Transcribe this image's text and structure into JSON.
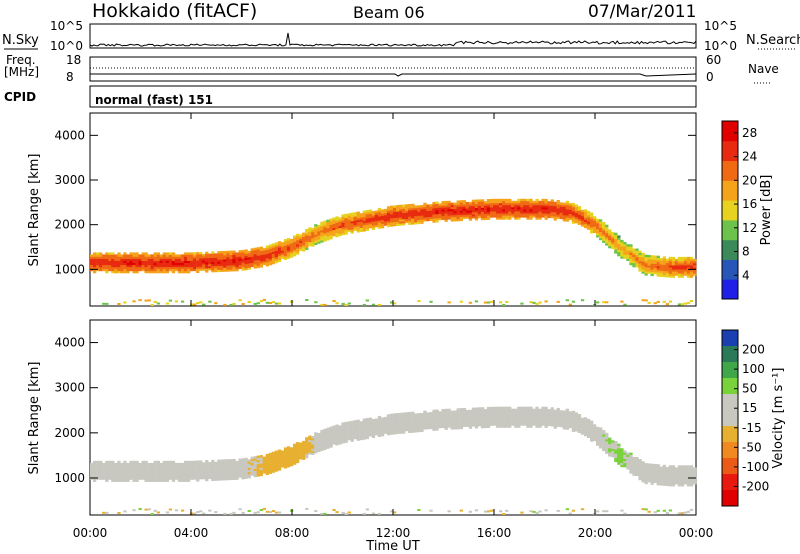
{
  "header": {
    "station": "Hokkaido (fitACF)",
    "beam": "Beam 06",
    "date": "07/Mar/2011"
  },
  "noise_panel": {
    "left_label": "N.Sky",
    "right_label": "N.Search",
    "tick_top": "10^5",
    "tick_bottom": "10^0"
  },
  "freq_panel": {
    "left_label_line1": "Freq.",
    "left_label_line2": "[MHz]",
    "left_tick_top": "18",
    "left_tick_bottom": "8",
    "right_label": "Nave",
    "right_tick_top": "60",
    "right_tick_bottom": "0"
  },
  "cpid_panel": {
    "label": "CPID",
    "text": "normal (fast) 151"
  },
  "power_panel": {
    "ylabel": "Slant Range [km]",
    "yticks": [
      "1000",
      "2000",
      "3000",
      "4000"
    ],
    "colorbar_label": "Power [dB]",
    "colorbar_ticks": [
      "4",
      "8",
      "12",
      "16",
      "20",
      "24",
      "28"
    ],
    "colorbar_colors": [
      "#1f1fe6",
      "#2855b8",
      "#3c8a5a",
      "#6cc24a",
      "#e6d21f",
      "#f5a31a",
      "#f06a14",
      "#e82a10",
      "#e00000"
    ]
  },
  "velocity_panel": {
    "ylabel": "Slant Range [km]",
    "yticks": [
      "1000",
      "2000",
      "3000",
      "4000"
    ],
    "colorbar_label": "Velocity [m s⁻¹]",
    "colorbar_ticks": [
      "200",
      "100",
      "50",
      "15",
      "-15",
      "-50",
      "-100",
      "-200"
    ],
    "colorbar_colors": [
      "#1a3fb0",
      "#2a7a5a",
      "#3fa64a",
      "#7ad23a",
      "#c8c8c0",
      "#c8c8c0",
      "#e8b030",
      "#f08a20",
      "#ec5a18",
      "#e81a10",
      "#e00000"
    ]
  },
  "xaxis": {
    "label": "Time UT",
    "ticks": [
      "00:00",
      "04:00",
      "08:00",
      "12:00",
      "16:00",
      "20:00",
      "00:00"
    ]
  },
  "chart_data": {
    "type": "heatmap",
    "title": "Hokkaido (fitACF) Beam 06 07/Mar/2011",
    "xlabel": "Time UT",
    "ylabel": "Slant Range [km]",
    "xlim": [
      "00:00",
      "24:00"
    ],
    "ylim": [
      180,
      4500
    ],
    "x_ticks": [
      "00:00",
      "04:00",
      "08:00",
      "12:00",
      "16:00",
      "20:00",
      "00:00"
    ],
    "y_ticks": [
      1000,
      2000,
      3000,
      4000
    ],
    "power_colorbar": {
      "label": "Power [dB]",
      "ticks": [
        4,
        8,
        12,
        16,
        20,
        24,
        28
      ],
      "range": [
        0,
        30
      ]
    },
    "velocity_colorbar": {
      "label": "Velocity [m s-1]",
      "ticks": [
        200,
        100,
        50,
        15,
        -15,
        -50,
        -100,
        -200
      ],
      "range": [
        -250,
        250
      ]
    },
    "echo_band_center_km": {
      "x_hours": [
        0,
        2,
        4,
        6,
        7,
        8,
        9,
        10,
        11,
        12,
        14,
        16,
        18,
        19,
        20,
        21,
        22,
        23,
        24
      ],
      "range_km": [
        1150,
        1150,
        1150,
        1200,
        1300,
        1500,
        1800,
        2000,
        2100,
        2200,
        2300,
        2350,
        2350,
        2300,
        2000,
        1500,
        1100,
        1050,
        1050
      ],
      "power_db": [
        26,
        27,
        27,
        27,
        26,
        24,
        22,
        24,
        25,
        26,
        27,
        27,
        27,
        26,
        23,
        20,
        22,
        24,
        25
      ],
      "velocity_ms": [
        -5,
        -5,
        -5,
        -8,
        -20,
        -30,
        -10,
        0,
        0,
        0,
        0,
        0,
        0,
        0,
        5,
        20,
        0,
        0,
        0
      ]
    }
  }
}
